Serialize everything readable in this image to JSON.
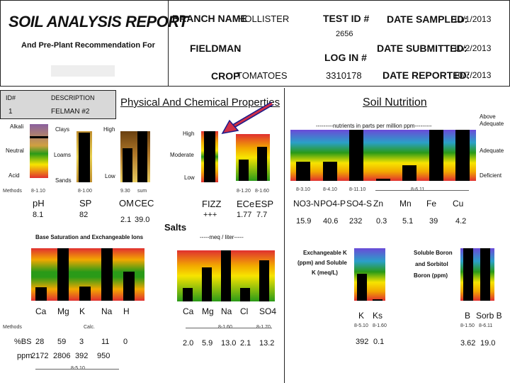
{
  "header": {
    "title": "SOIL ANALYSIS REPORT",
    "subtitle": "And Pre-Plant Recommendation For",
    "branch_label": "BRANCH NAME",
    "branch_value": "HOLLISTER",
    "fieldman_label": "FIELDMAN",
    "fieldman_value": ".",
    "crop_label": "CROP",
    "crop_value": "TOMATOES",
    "test_id_label": "TEST ID #",
    "test_id_value": "2656",
    "log_in_label": "LOG IN #",
    "log_in_value": "3310178",
    "date_sampled_label": "DATE SAMPLED:",
    "date_sampled_value": "10/1/2013",
    "date_submitted_label": "DATE SUBMITTED:",
    "date_submitted_value": "10/2/2013",
    "date_reported_label": "DATE REPORTED:",
    "date_reported_value": "10/7/2013"
  },
  "id_block": {
    "id_header": "ID#",
    "desc_header": "DESCRIPTION",
    "id_value": "1",
    "desc_value": "FELMAN #2"
  },
  "physical": {
    "title": "Physical And Chemical Properties",
    "alkali": "Alkali",
    "neutral": "Neutral",
    "acid": "Acid",
    "methods": "Methods",
    "clays": "Clays",
    "loams": "Loams",
    "sands": "Sands",
    "high": "High",
    "low": "Low",
    "moderate": "Moderate",
    "ph_label": "pH",
    "ph_method": "8-1.10",
    "ph_value": "8.1",
    "sp_label": "SP",
    "sp_method": "8-1.00",
    "sp_value": "82",
    "om_label": "OM",
    "om_method": "9.30",
    "om_value": "2.1",
    "cec_label": "CEC",
    "cec_method": "sum",
    "cec_value": "39.0",
    "fizz_label": "FIZZ",
    "fizz_value": "+++",
    "ece_label": "ECe",
    "ece_method": "8-1.20",
    "ece_value": "1.77",
    "esp_label": "ESP",
    "esp_method": "8-1.60",
    "esp_value": "7.7"
  },
  "base_sat": {
    "title": "Base Saturation and Exchangeable Ions",
    "methods": "Methods",
    "calc": "Calc.",
    "bs_label": "%BS",
    "ppm_label": "ppm",
    "method_footer": "8-5.10",
    "ions": [
      {
        "name": "Ca",
        "bs": "28",
        "ppm": "2172",
        "level": 0.25
      },
      {
        "name": "Mg",
        "bs": "59",
        "ppm": "2806",
        "level": 1.0
      },
      {
        "name": "K",
        "bs": "3",
        "ppm": "392",
        "level": 0.27
      },
      {
        "name": "Na",
        "bs": "11",
        "ppm": "950",
        "level": 1.0
      },
      {
        "name": "H",
        "bs": "0",
        "ppm": "",
        "level": 0.55
      }
    ]
  },
  "salts": {
    "title": "Salts",
    "units": "-----meq / liter-----",
    "method_a": "8-1.60",
    "method_b": "8-1.70",
    "ions": [
      {
        "name": "Ca",
        "value": "2.0",
        "level": 0.27
      },
      {
        "name": "Mg",
        "value": "5.9",
        "level": 0.67
      },
      {
        "name": "Na",
        "value": "13.0",
        "level": 1.0
      },
      {
        "name": "Cl",
        "value": "2.1",
        "level": 0.27
      },
      {
        "name": "SO4",
        "value": "13.2",
        "level": 0.8
      }
    ]
  },
  "nutrition": {
    "title": "Soil Nutrition",
    "units": "---------nutrients in parts per million ppm---------",
    "above": "Above",
    "adequate_top": "Adequate",
    "adequate": "Adequate",
    "deficient": "Deficient",
    "nutrients": [
      {
        "name": "NO3-N",
        "method": "8-3.10",
        "value": "15.9",
        "level": 0.37
      },
      {
        "name": "PO4-P",
        "method": "8-4.10",
        "value": "40.6",
        "level": 0.37
      },
      {
        "name": "SO4-S",
        "method": "8-11.10",
        "value": "232",
        "level": 1.0
      },
      {
        "name": "Zn",
        "method": "",
        "value": "0.3",
        "level": 0.04
      },
      {
        "name": "Mn",
        "method": "",
        "value": "5.1",
        "level": 0.3
      },
      {
        "name": "Fe",
        "method": "",
        "value": "39",
        "level": 1.0
      },
      {
        "name": "Cu",
        "method": "",
        "value": "4.2",
        "level": 1.0
      }
    ],
    "micro_method": "8-6.11"
  },
  "exch_k": {
    "title_line1": "Exchangeable K",
    "title_line2": "(ppm) and Soluble",
    "title_line3": "K (meq/L)",
    "k_label": "K",
    "k_method": "8-5.10",
    "k_value": "392",
    "ks_label": "Ks",
    "ks_method": "8-1.60",
    "ks_value": "0.1"
  },
  "boron": {
    "title_line1": "Soluble Boron",
    "title_line2": "and Sorbitol",
    "title_line3": "Boron (ppm)",
    "b_label": "B",
    "b_method": "8-1.50",
    "b_value": "3.62",
    "sorb_label": "Sorb B",
    "sorb_method": "8-6.11",
    "sorb_value": "19.0"
  }
}
